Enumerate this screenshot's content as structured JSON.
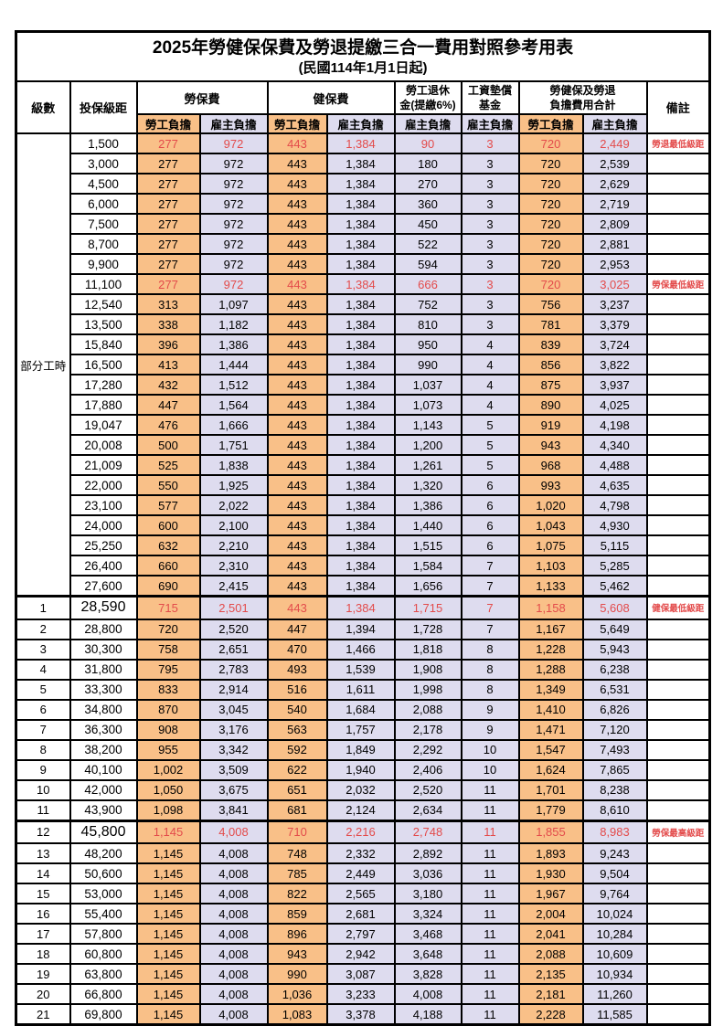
{
  "title": "2025年勞健保保費及勞退提繳三合一費用對照參考用表",
  "subtitle": "(民國114年1月1日起)",
  "colors": {
    "employee_col_bg": "#f9c088",
    "employer_col_bg": "#dedcef",
    "highlight_text": "#e34b4b",
    "border": "#000000"
  },
  "header": {
    "level": "級數",
    "bracket": "投保級距",
    "labor_insurance": "勞保費",
    "health_insurance": "健保費",
    "pension_line1": "勞工退休",
    "pension_line2": "金(提繳6%)",
    "wage_fund_line1": "工資墊償",
    "wage_fund_line2": "基金",
    "total_line1": "勞健保及勞退",
    "total_line2": "負擔費用合計",
    "remark": "備註",
    "employee": "勞工負擔",
    "employer": "雇主負擔"
  },
  "part_time_label": "部分工時",
  "part_time_rows": [
    {
      "bracket": "1,500",
      "values": [
        "277",
        "972",
        "443",
        "1,384",
        "90",
        "3",
        "720",
        "2,449"
      ],
      "remark": "勞退最低級距",
      "highlight": true,
      "big": false
    },
    {
      "bracket": "3,000",
      "values": [
        "277",
        "972",
        "443",
        "1,384",
        "180",
        "3",
        "720",
        "2,539"
      ],
      "remark": "",
      "highlight": false,
      "big": false
    },
    {
      "bracket": "4,500",
      "values": [
        "277",
        "972",
        "443",
        "1,384",
        "270",
        "3",
        "720",
        "2,629"
      ],
      "remark": "",
      "highlight": false,
      "big": false
    },
    {
      "bracket": "6,000",
      "values": [
        "277",
        "972",
        "443",
        "1,384",
        "360",
        "3",
        "720",
        "2,719"
      ],
      "remark": "",
      "highlight": false,
      "big": false
    },
    {
      "bracket": "7,500",
      "values": [
        "277",
        "972",
        "443",
        "1,384",
        "450",
        "3",
        "720",
        "2,809"
      ],
      "remark": "",
      "highlight": false,
      "big": false
    },
    {
      "bracket": "8,700",
      "values": [
        "277",
        "972",
        "443",
        "1,384",
        "522",
        "3",
        "720",
        "2,881"
      ],
      "remark": "",
      "highlight": false,
      "big": false
    },
    {
      "bracket": "9,900",
      "values": [
        "277",
        "972",
        "443",
        "1,384",
        "594",
        "3",
        "720",
        "2,953"
      ],
      "remark": "",
      "highlight": false,
      "big": false
    },
    {
      "bracket": "11,100",
      "values": [
        "277",
        "972",
        "443",
        "1,384",
        "666",
        "3",
        "720",
        "3,025"
      ],
      "remark": "勞保最低級距",
      "highlight": true,
      "big": false
    },
    {
      "bracket": "12,540",
      "values": [
        "313",
        "1,097",
        "443",
        "1,384",
        "752",
        "3",
        "756",
        "3,237"
      ],
      "remark": "",
      "highlight": false,
      "big": false
    },
    {
      "bracket": "13,500",
      "values": [
        "338",
        "1,182",
        "443",
        "1,384",
        "810",
        "3",
        "781",
        "3,379"
      ],
      "remark": "",
      "highlight": false,
      "big": false
    },
    {
      "bracket": "15,840",
      "values": [
        "396",
        "1,386",
        "443",
        "1,384",
        "950",
        "4",
        "839",
        "3,724"
      ],
      "remark": "",
      "highlight": false,
      "big": false
    },
    {
      "bracket": "16,500",
      "values": [
        "413",
        "1,444",
        "443",
        "1,384",
        "990",
        "4",
        "856",
        "3,822"
      ],
      "remark": "",
      "highlight": false,
      "big": false
    },
    {
      "bracket": "17,280",
      "values": [
        "432",
        "1,512",
        "443",
        "1,384",
        "1,037",
        "4",
        "875",
        "3,937"
      ],
      "remark": "",
      "highlight": false,
      "big": false
    },
    {
      "bracket": "17,880",
      "values": [
        "447",
        "1,564",
        "443",
        "1,384",
        "1,073",
        "4",
        "890",
        "4,025"
      ],
      "remark": "",
      "highlight": false,
      "big": false
    },
    {
      "bracket": "19,047",
      "values": [
        "476",
        "1,666",
        "443",
        "1,384",
        "1,143",
        "5",
        "919",
        "4,198"
      ],
      "remark": "",
      "highlight": false,
      "big": false
    },
    {
      "bracket": "20,008",
      "values": [
        "500",
        "1,751",
        "443",
        "1,384",
        "1,200",
        "5",
        "943",
        "4,340"
      ],
      "remark": "",
      "highlight": false,
      "big": false
    },
    {
      "bracket": "21,009",
      "values": [
        "525",
        "1,838",
        "443",
        "1,384",
        "1,261",
        "5",
        "968",
        "4,488"
      ],
      "remark": "",
      "highlight": false,
      "big": false
    },
    {
      "bracket": "22,000",
      "values": [
        "550",
        "1,925",
        "443",
        "1,384",
        "1,320",
        "6",
        "993",
        "4,635"
      ],
      "remark": "",
      "highlight": false,
      "big": false
    },
    {
      "bracket": "23,100",
      "values": [
        "577",
        "2,022",
        "443",
        "1,384",
        "1,386",
        "6",
        "1,020",
        "4,798"
      ],
      "remark": "",
      "highlight": false,
      "big": false
    },
    {
      "bracket": "24,000",
      "values": [
        "600",
        "2,100",
        "443",
        "1,384",
        "1,440",
        "6",
        "1,043",
        "4,930"
      ],
      "remark": "",
      "highlight": false,
      "big": false
    },
    {
      "bracket": "25,250",
      "values": [
        "632",
        "2,210",
        "443",
        "1,384",
        "1,515",
        "6",
        "1,075",
        "5,115"
      ],
      "remark": "",
      "highlight": false,
      "big": false
    },
    {
      "bracket": "26,400",
      "values": [
        "660",
        "2,310",
        "443",
        "1,384",
        "1,584",
        "7",
        "1,103",
        "5,285"
      ],
      "remark": "",
      "highlight": false,
      "big": false
    },
    {
      "bracket": "27,600",
      "values": [
        "690",
        "2,415",
        "443",
        "1,384",
        "1,656",
        "7",
        "1,133",
        "5,462"
      ],
      "remark": "",
      "highlight": false,
      "big": false
    }
  ],
  "level_rows": [
    {
      "level": "1",
      "bracket": "28,590",
      "values": [
        "715",
        "2,501",
        "443",
        "1,384",
        "1,715",
        "7",
        "1,158",
        "5,608"
      ],
      "remark": "健保最低級距",
      "highlight": true,
      "big": true
    },
    {
      "level": "2",
      "bracket": "28,800",
      "values": [
        "720",
        "2,520",
        "447",
        "1,394",
        "1,728",
        "7",
        "1,167",
        "5,649"
      ],
      "remark": "",
      "highlight": false,
      "big": false
    },
    {
      "level": "3",
      "bracket": "30,300",
      "values": [
        "758",
        "2,651",
        "470",
        "1,466",
        "1,818",
        "8",
        "1,228",
        "5,943"
      ],
      "remark": "",
      "highlight": false,
      "big": false
    },
    {
      "level": "4",
      "bracket": "31,800",
      "values": [
        "795",
        "2,783",
        "493",
        "1,539",
        "1,908",
        "8",
        "1,288",
        "6,238"
      ],
      "remark": "",
      "highlight": false,
      "big": false
    },
    {
      "level": "5",
      "bracket": "33,300",
      "values": [
        "833",
        "2,914",
        "516",
        "1,611",
        "1,998",
        "8",
        "1,349",
        "6,531"
      ],
      "remark": "",
      "highlight": false,
      "big": false
    },
    {
      "level": "6",
      "bracket": "34,800",
      "values": [
        "870",
        "3,045",
        "540",
        "1,684",
        "2,088",
        "9",
        "1,410",
        "6,826"
      ],
      "remark": "",
      "highlight": false,
      "big": false
    },
    {
      "level": "7",
      "bracket": "36,300",
      "values": [
        "908",
        "3,176",
        "563",
        "1,757",
        "2,178",
        "9",
        "1,471",
        "7,120"
      ],
      "remark": "",
      "highlight": false,
      "big": false
    },
    {
      "level": "8",
      "bracket": "38,200",
      "values": [
        "955",
        "3,342",
        "592",
        "1,849",
        "2,292",
        "10",
        "1,547",
        "7,493"
      ],
      "remark": "",
      "highlight": false,
      "big": false
    },
    {
      "level": "9",
      "bracket": "40,100",
      "values": [
        "1,002",
        "3,509",
        "622",
        "1,940",
        "2,406",
        "10",
        "1,624",
        "7,865"
      ],
      "remark": "",
      "highlight": false,
      "big": false
    },
    {
      "level": "10",
      "bracket": "42,000",
      "values": [
        "1,050",
        "3,675",
        "651",
        "2,032",
        "2,520",
        "11",
        "1,701",
        "8,238"
      ],
      "remark": "",
      "highlight": false,
      "big": false
    },
    {
      "level": "11",
      "bracket": "43,900",
      "values": [
        "1,098",
        "3,841",
        "681",
        "2,124",
        "2,634",
        "11",
        "1,779",
        "8,610"
      ],
      "remark": "",
      "highlight": false,
      "big": false
    },
    {
      "level": "12",
      "bracket": "45,800",
      "values": [
        "1,145",
        "4,008",
        "710",
        "2,216",
        "2,748",
        "11",
        "1,855",
        "8,983"
      ],
      "remark": "勞保最高級距",
      "highlight": true,
      "big": true
    },
    {
      "level": "13",
      "bracket": "48,200",
      "values": [
        "1,145",
        "4,008",
        "748",
        "2,332",
        "2,892",
        "11",
        "1,893",
        "9,243"
      ],
      "remark": "",
      "highlight": false,
      "big": false
    },
    {
      "level": "14",
      "bracket": "50,600",
      "values": [
        "1,145",
        "4,008",
        "785",
        "2,449",
        "3,036",
        "11",
        "1,930",
        "9,504"
      ],
      "remark": "",
      "highlight": false,
      "big": false
    },
    {
      "level": "15",
      "bracket": "53,000",
      "values": [
        "1,145",
        "4,008",
        "822",
        "2,565",
        "3,180",
        "11",
        "1,967",
        "9,764"
      ],
      "remark": "",
      "highlight": false,
      "big": false
    },
    {
      "level": "16",
      "bracket": "55,400",
      "values": [
        "1,145",
        "4,008",
        "859",
        "2,681",
        "3,324",
        "11",
        "2,004",
        "10,024"
      ],
      "remark": "",
      "highlight": false,
      "big": false
    },
    {
      "level": "17",
      "bracket": "57,800",
      "values": [
        "1,145",
        "4,008",
        "896",
        "2,797",
        "3,468",
        "11",
        "2,041",
        "10,284"
      ],
      "remark": "",
      "highlight": false,
      "big": false
    },
    {
      "level": "18",
      "bracket": "60,800",
      "values": [
        "1,145",
        "4,008",
        "943",
        "2,942",
        "3,648",
        "11",
        "2,088",
        "10,609"
      ],
      "remark": "",
      "highlight": false,
      "big": false
    },
    {
      "level": "19",
      "bracket": "63,800",
      "values": [
        "1,145",
        "4,008",
        "990",
        "3,087",
        "3,828",
        "11",
        "2,135",
        "10,934"
      ],
      "remark": "",
      "highlight": false,
      "big": false
    },
    {
      "level": "20",
      "bracket": "66,800",
      "values": [
        "1,145",
        "4,008",
        "1,036",
        "3,233",
        "4,008",
        "11",
        "2,181",
        "11,260"
      ],
      "remark": "",
      "highlight": false,
      "big": false
    },
    {
      "level": "21",
      "bracket": "69,800",
      "values": [
        "1,145",
        "4,008",
        "1,083",
        "3,378",
        "4,188",
        "11",
        "2,228",
        "11,585"
      ],
      "remark": "",
      "highlight": false,
      "big": false
    }
  ]
}
